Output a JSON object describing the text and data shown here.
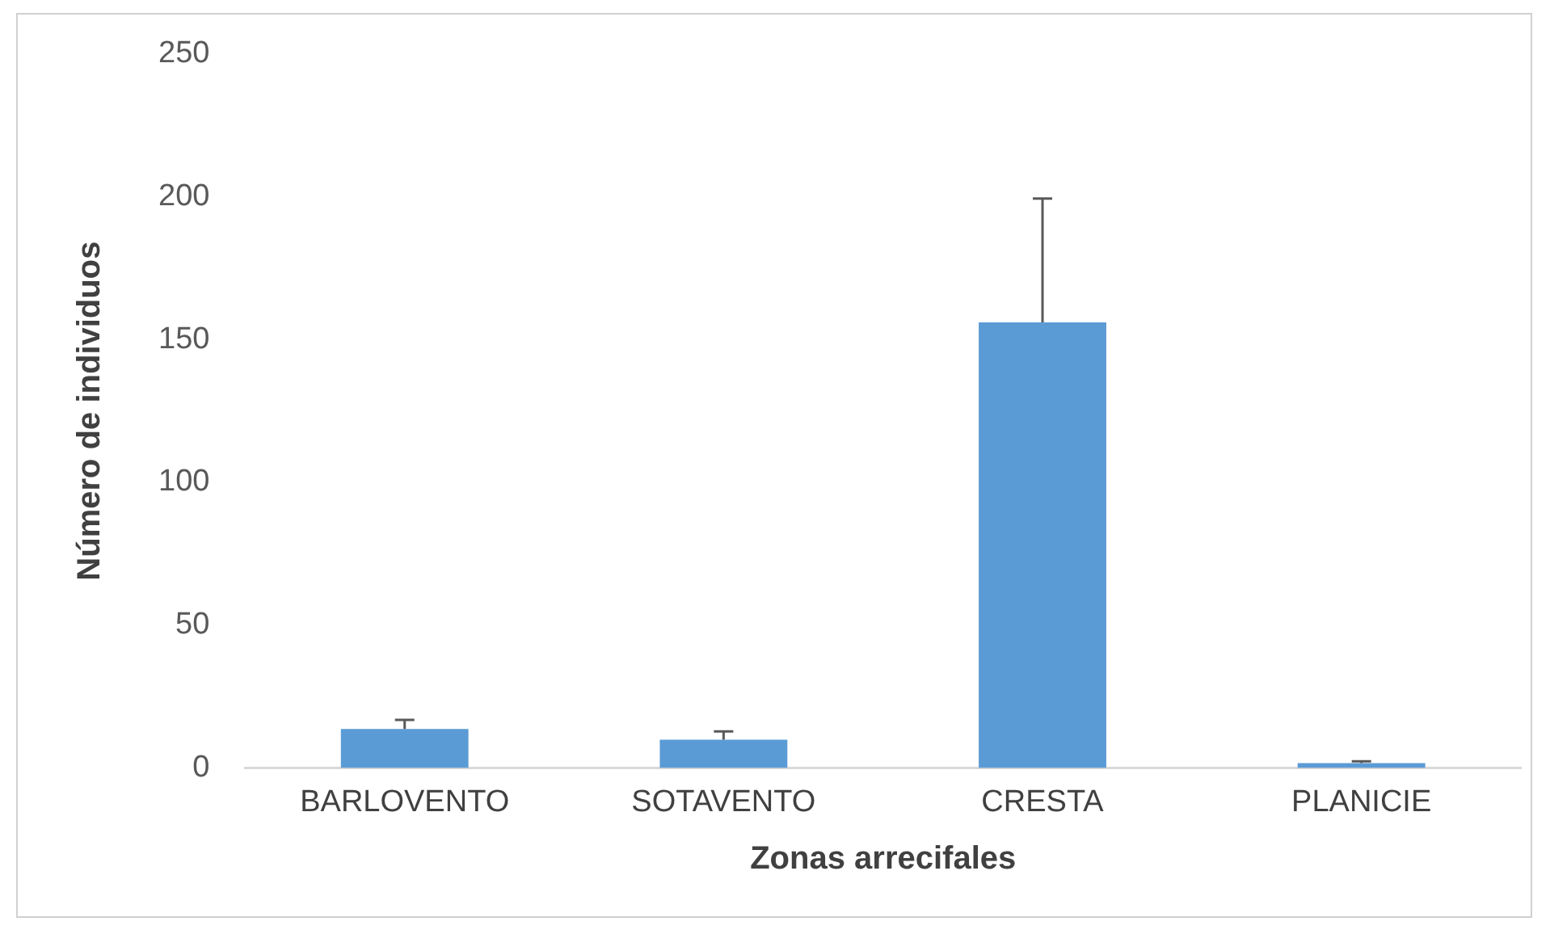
{
  "chart_data": {
    "type": "bar",
    "xlabel": "Zonas arrecifales",
    "ylabel": "Número de individuos",
    "categories": [
      "BARLOVENTO",
      "SOTAVENTO",
      "CRESTA",
      "PLANICIE"
    ],
    "values": [
      13.6,
      9.9,
      156,
      1.7
    ],
    "errors": [
      [
        13.6,
        16.8
      ],
      [
        9.9,
        12.8
      ],
      [
        156,
        199.4
      ],
      [
        1.7,
        2.3
      ]
    ],
    "color": "#5b9bd5",
    "ylim": [
      0,
      250
    ],
    "yticks": [
      0,
      50,
      100,
      150,
      200,
      250
    ],
    "grid": false,
    "legend": false
  }
}
